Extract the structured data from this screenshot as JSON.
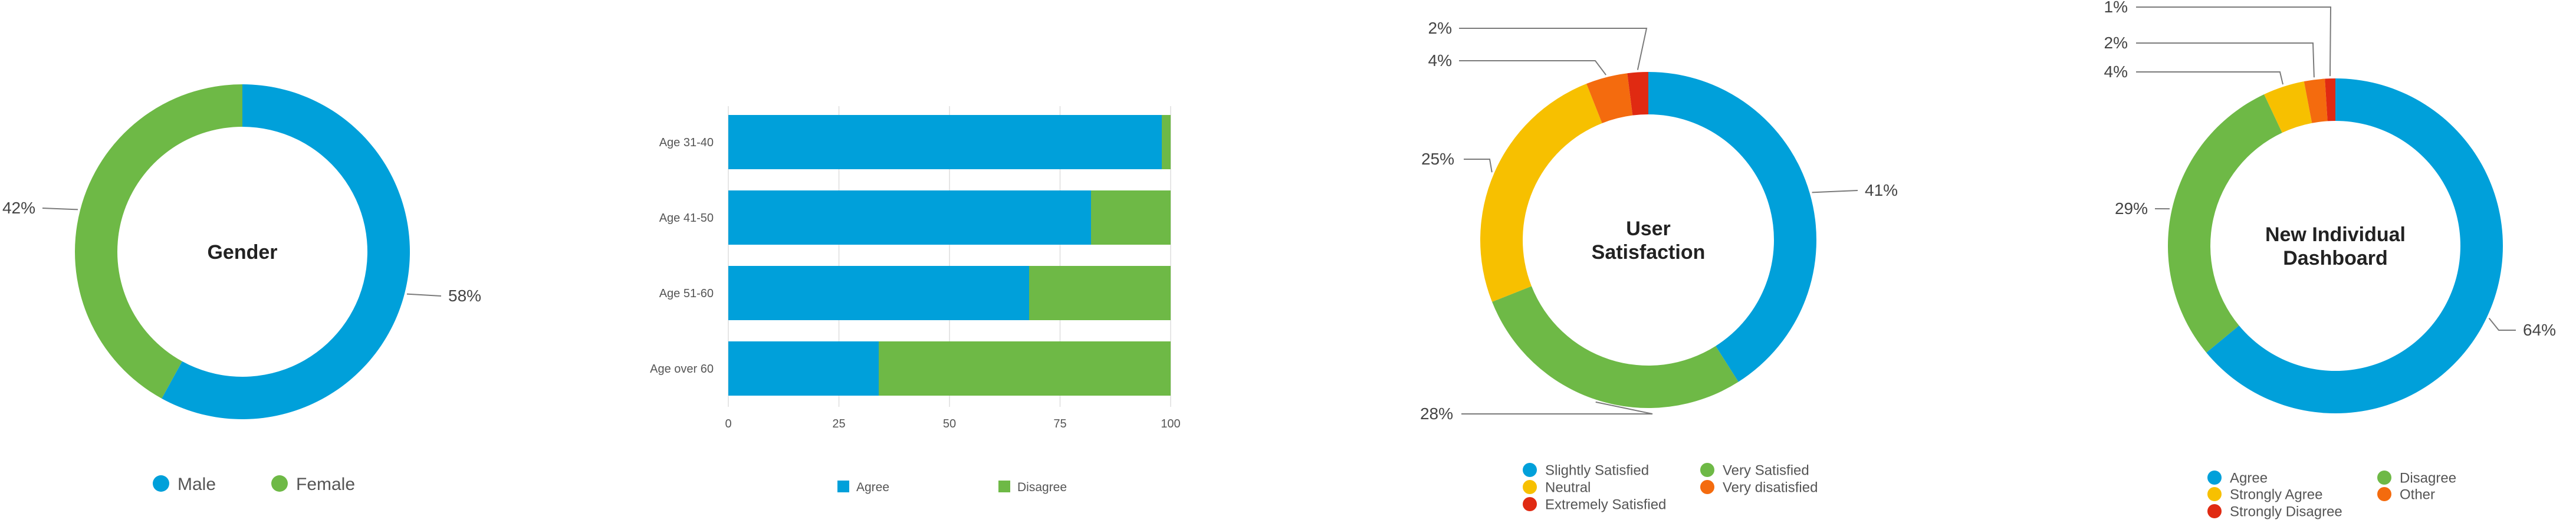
{
  "colors": {
    "blue": "#00A0DA",
    "green": "#6EB946",
    "yellow": "#F7C000",
    "orange": "#F46B0E",
    "red": "#E02A12",
    "grid": "#E6E6E6",
    "leader": "#7A7A7A"
  },
  "chart_data": [
    {
      "type": "pie",
      "variant": "donut",
      "title": "Gender",
      "slices": [
        {
          "label": "Male",
          "value": 58,
          "display": "58%",
          "color": "#00A0DA"
        },
        {
          "label": "Female",
          "value": 42,
          "display": "42%",
          "color": "#6EB946"
        }
      ],
      "legend": [
        "Male",
        "Female"
      ]
    },
    {
      "type": "bar",
      "orientation": "horizontal",
      "stacked": true,
      "categories": [
        "Age 31-40",
        "Age 41-50",
        "Age 51-60",
        "Age over 60"
      ],
      "series": [
        {
          "name": "Agree",
          "values": [
            98,
            82,
            68,
            34
          ],
          "color": "#00A0DA"
        },
        {
          "name": "Disagree",
          "values": [
            2,
            18,
            32,
            66
          ],
          "color": "#6EB946"
        }
      ],
      "xlim": [
        0,
        100
      ],
      "xticks": [
        "0",
        "25",
        "50",
        "75",
        "100"
      ],
      "grid": true,
      "legend": [
        "Agree",
        "Disagree"
      ]
    },
    {
      "type": "pie",
      "variant": "donut",
      "title": "User Satisfaction",
      "title_lines": [
        "User",
        "Satisfaction"
      ],
      "slices": [
        {
          "label": "Slightly Satisfied",
          "value": 41,
          "display": "41%",
          "color": "#00A0DA"
        },
        {
          "label": "Very Satisfied",
          "value": 28,
          "display": "28%",
          "color": "#6EB946"
        },
        {
          "label": "Neutral",
          "value": 25,
          "display": "25%",
          "color": "#F7C000"
        },
        {
          "label": "Very disatisfied",
          "value": 4,
          "display": "4%",
          "color": "#F46B0E"
        },
        {
          "label": "Extremely Satisfied",
          "value": 2,
          "display": "2%",
          "color": "#E02A12"
        }
      ],
      "legend": [
        "Slightly Satisfied",
        "Very Satisfied",
        "Neutral",
        "Very disatisfied",
        "Extremely Satisfied"
      ]
    },
    {
      "type": "pie",
      "variant": "donut",
      "title": "New Individual Dashboard",
      "title_lines": [
        "New Individual",
        "Dashboard"
      ],
      "slices": [
        {
          "label": "Agree",
          "value": 64,
          "display": "64%",
          "color": "#00A0DA"
        },
        {
          "label": "Disagree",
          "value": 29,
          "display": "29%",
          "color": "#6EB946"
        },
        {
          "label": "Strongly Agree",
          "value": 4,
          "display": "4%",
          "color": "#F7C000"
        },
        {
          "label": "Other",
          "value": 2,
          "display": "2%",
          "color": "#F46B0E"
        },
        {
          "label": "Strongly Disagree",
          "value": 1,
          "display": "1%",
          "color": "#E02A12"
        }
      ],
      "legend": [
        "Agree",
        "Disagree",
        "Strongly Agree",
        "Other",
        "Strongly Disagree"
      ]
    }
  ]
}
